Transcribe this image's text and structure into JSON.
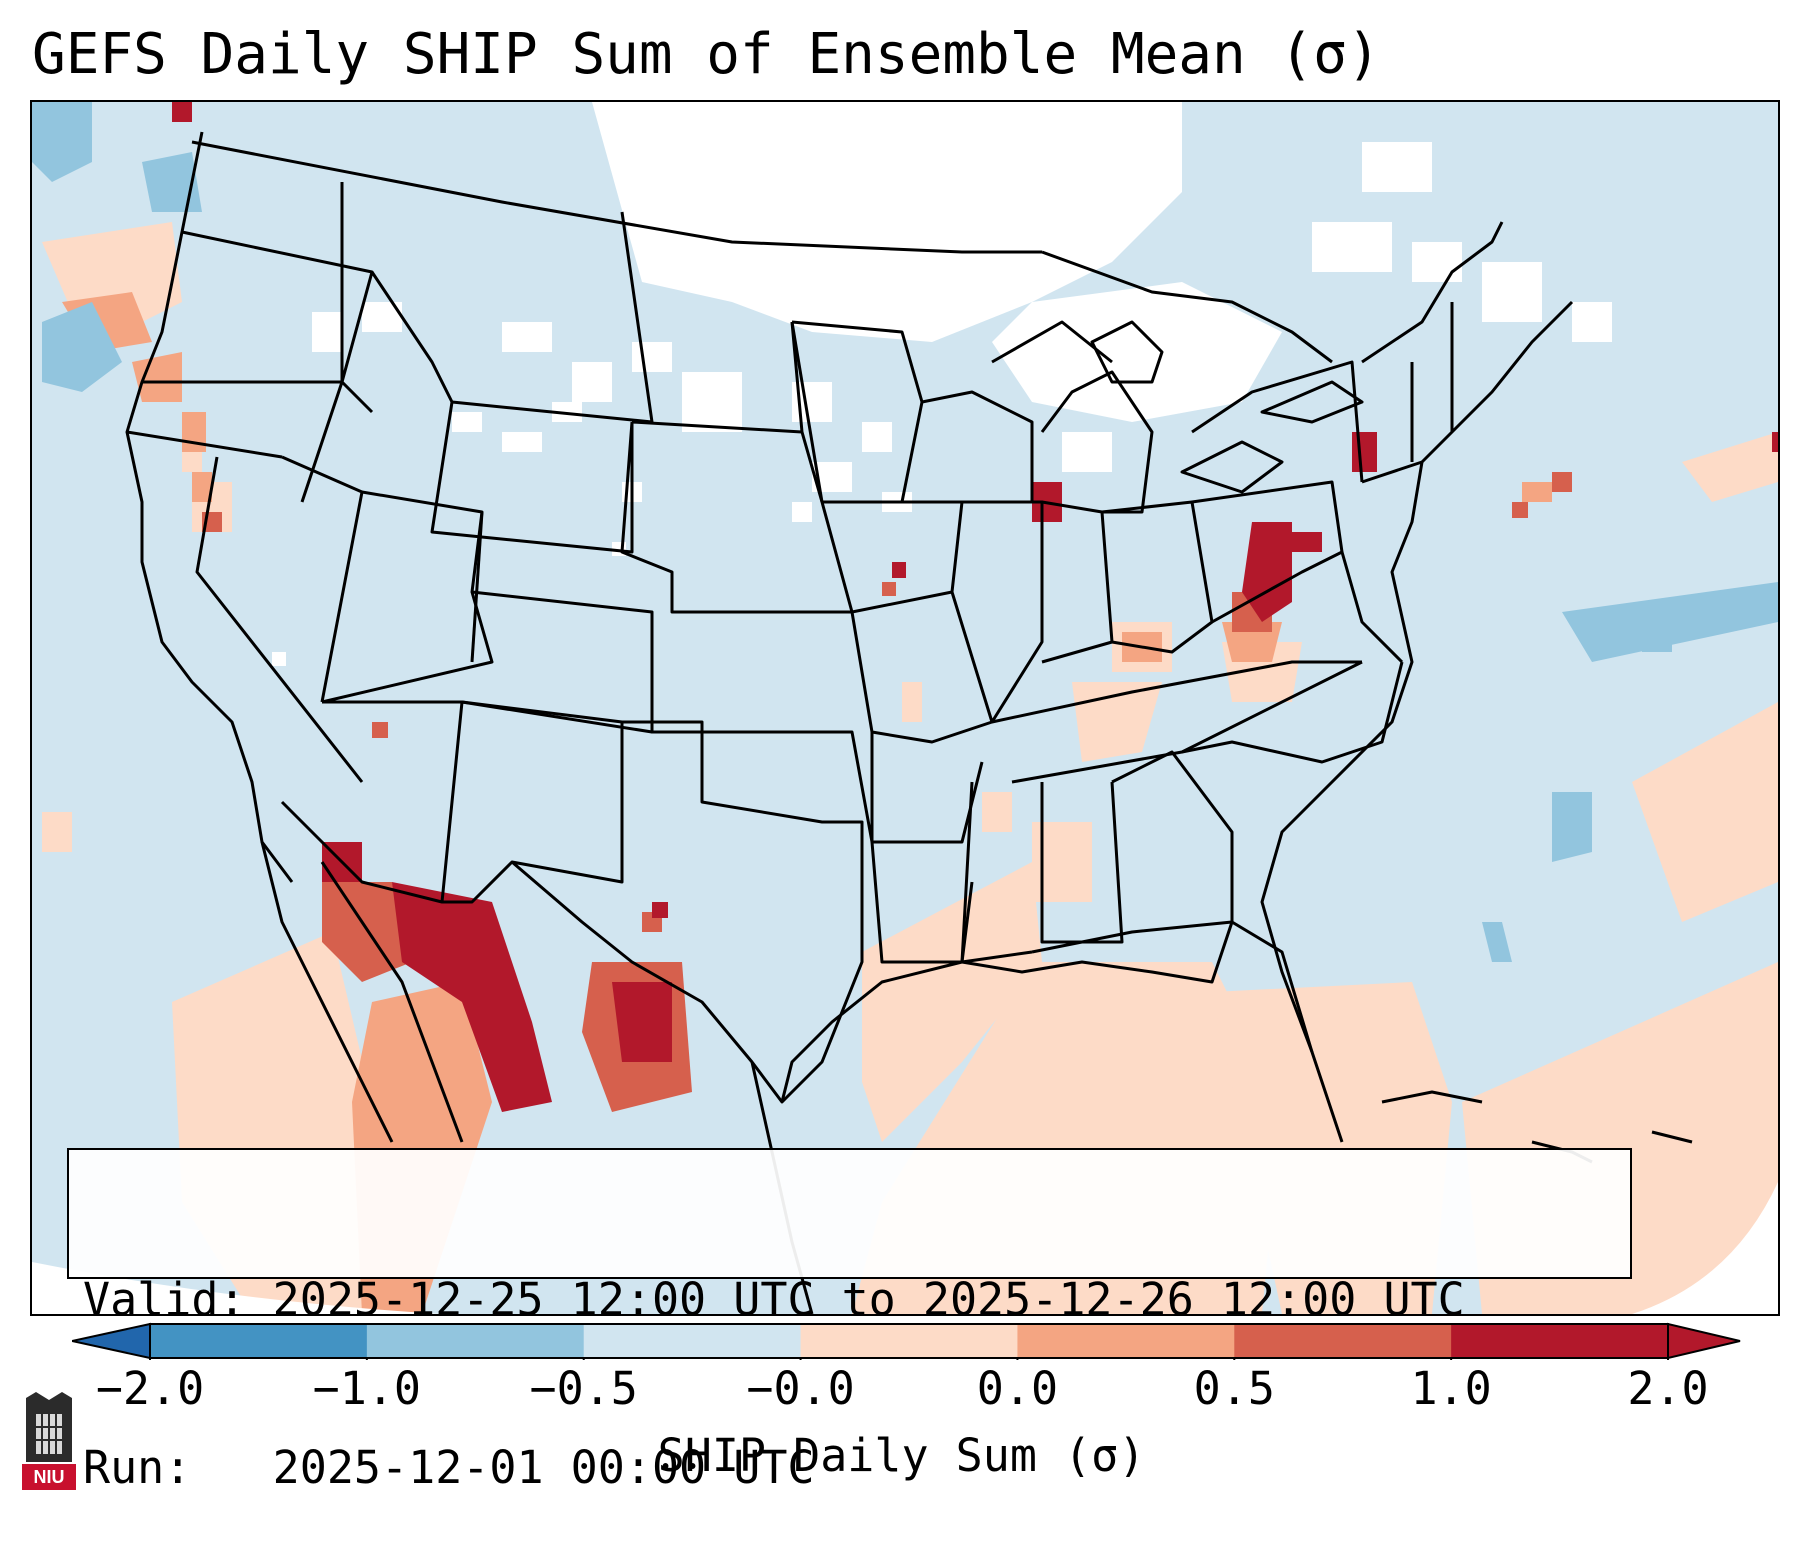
{
  "title": "GEFS Daily SHIP Sum of Ensemble Mean (σ)",
  "info": {
    "valid_label": "Valid:",
    "valid_value": "2025-12-25 12:00 UTC to 2025-12-26 12:00 UTC",
    "run_label": "Run:",
    "run_value": "2025-12-01 00:00 UTC"
  },
  "colorbar": {
    "label": "SHIP Daily Sum (σ)",
    "ticks": [
      "−2.0",
      "−1.0",
      "−0.5",
      "−0.0",
      "0.0",
      "0.5",
      "1.0",
      "2.0"
    ],
    "colors": [
      "#4393c3",
      "#92c5de",
      "#d1e5f0",
      "#f7f7f7",
      "#fddbc7",
      "#f4a582",
      "#d6604d",
      "#b2182b"
    ],
    "extend_low_color": "#2166ac",
    "extend_high_color": "#b2182b"
  },
  "map": {
    "background_color": "#d1e5f0",
    "no_data_color": "#ffffff",
    "boundary_color": "#000000"
  },
  "logo": {
    "text": "NIU",
    "color": "#c8102e"
  }
}
